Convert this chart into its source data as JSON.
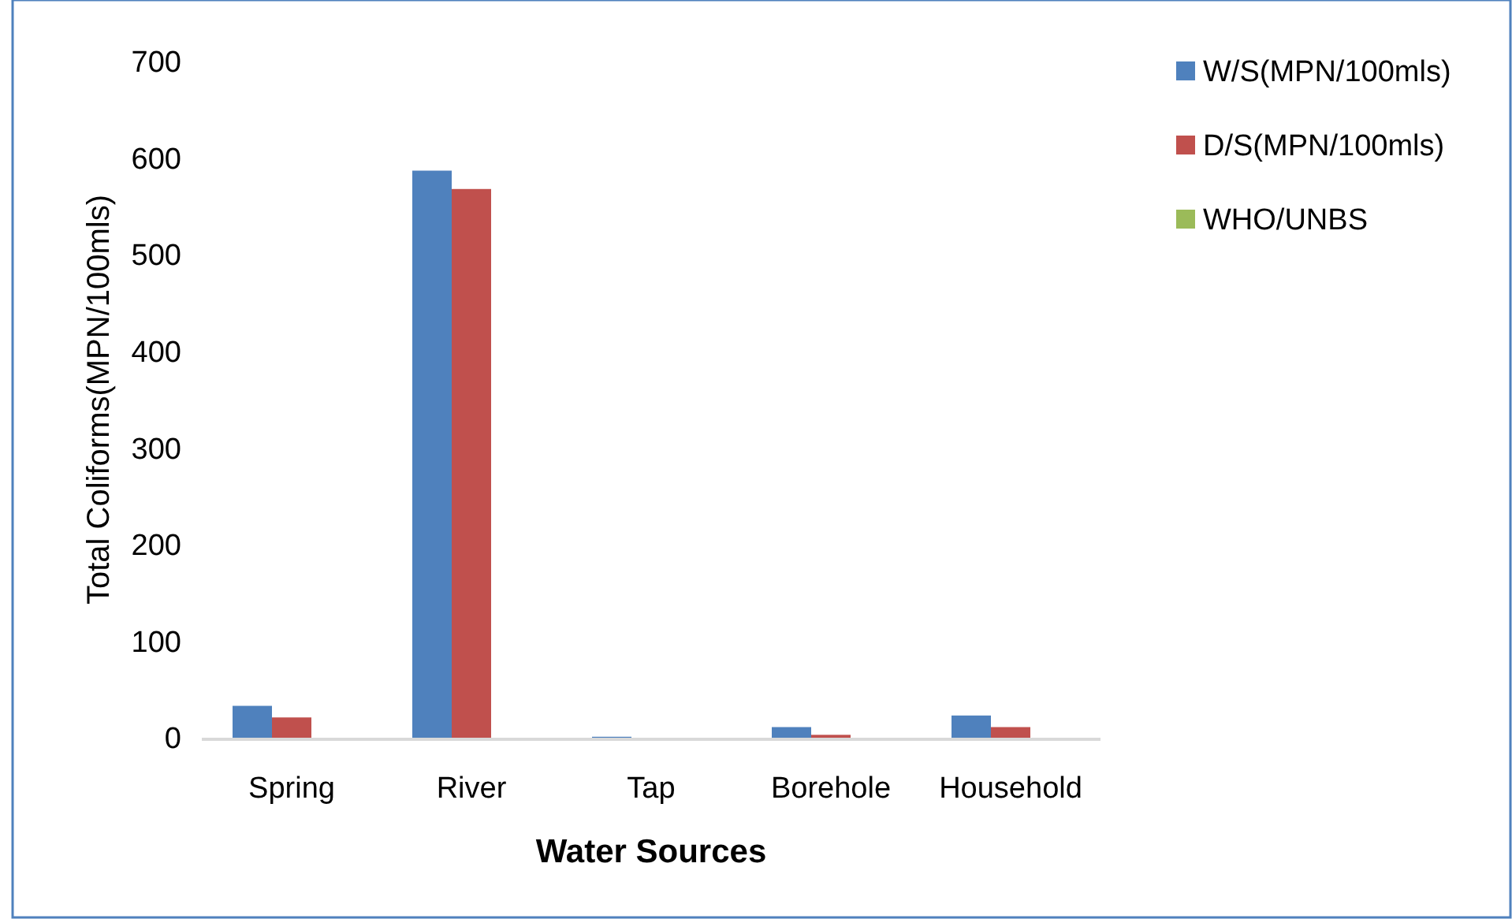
{
  "chart_data": {
    "type": "bar",
    "xlabel": "Water Sources",
    "ylabel": "Total Coliforms(MPN/100mls)",
    "categories": [
      "Spring",
      "River",
      "Tap",
      "Borehole",
      "Household"
    ],
    "series": [
      {
        "name": "W/S(MPN/100mls)",
        "color": "#4f81bd",
        "values": [
          33,
          587,
          1,
          11,
          23
        ]
      },
      {
        "name": "D/S(MPN/100mls)",
        "color": "#c0504d",
        "values": [
          21,
          568,
          0,
          3,
          11
        ]
      },
      {
        "name": "WHO/UNBS",
        "color": "#9bbb59",
        "values": [
          0,
          0,
          0,
          0,
          0
        ]
      }
    ],
    "ylim": [
      0,
      700
    ],
    "yticks": [
      0,
      100,
      200,
      300,
      400,
      500,
      600,
      700
    ],
    "grid": false,
    "legend": "right"
  }
}
